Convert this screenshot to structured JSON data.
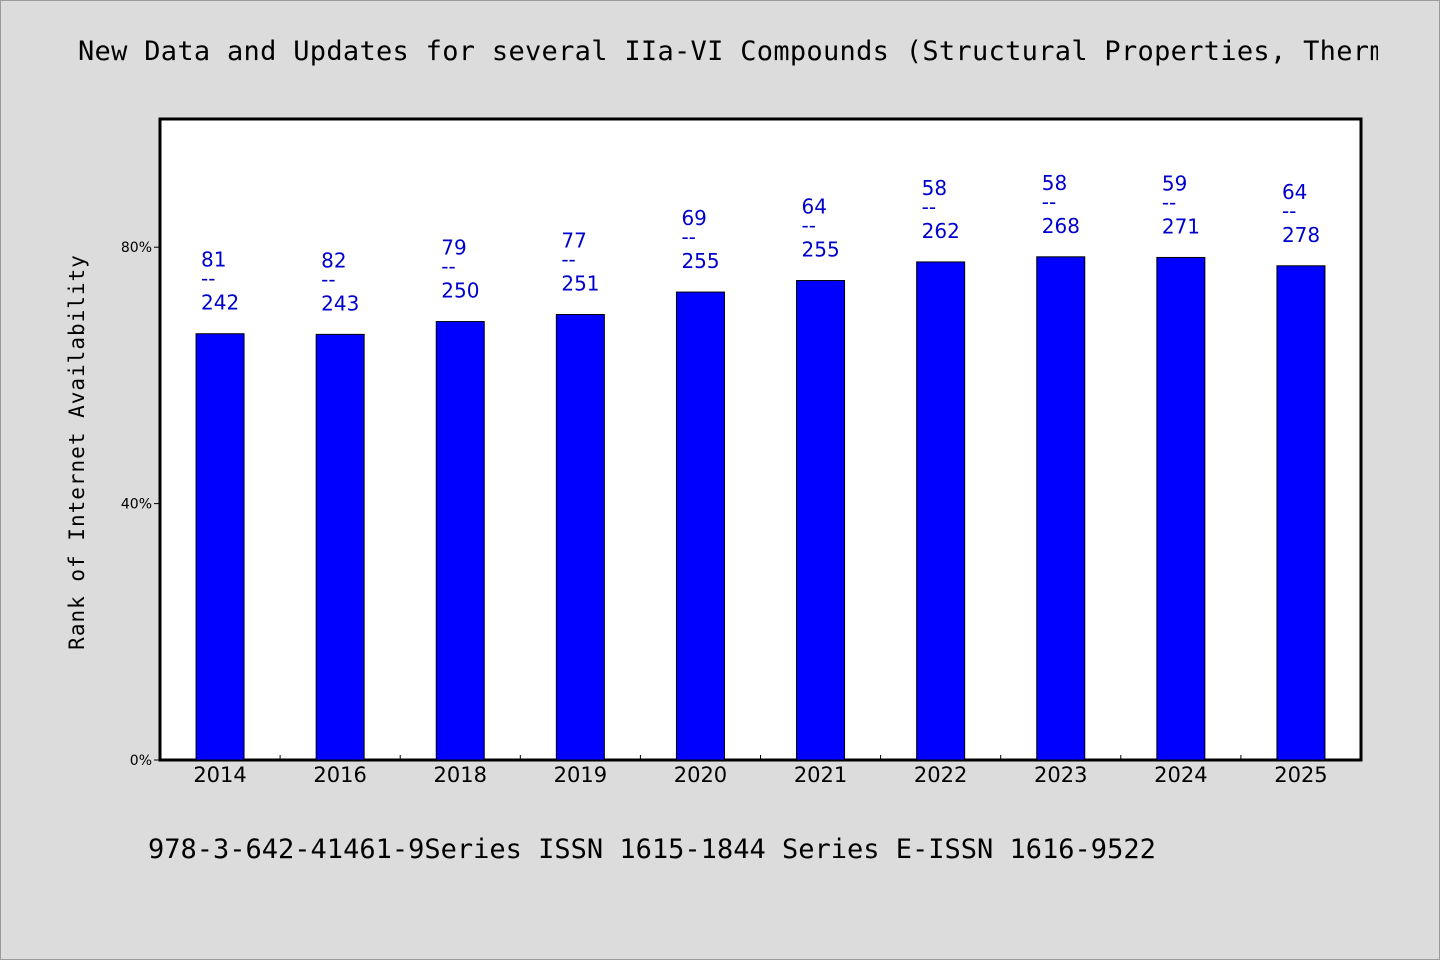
{
  "header": {
    "title": "New Data and Updates for several IIa-VI Compounds (Structural Properties, Therma"
  },
  "footer": {
    "text": "978-3-642-41461-9Series ISSN 1615-1844 Series E-ISSN 1616-9522"
  },
  "chart_data": {
    "type": "bar",
    "title": "New Data and Updates for several IIa-VI Compounds (Structural Properties, Therma",
    "xlabel": "",
    "ylabel": "Rank of Internet Availability",
    "ylim": [
      0,
      100
    ],
    "yticks": [
      "0%",
      "40%",
      "80%"
    ],
    "ytick_values": [
      0,
      40,
      80
    ],
    "categories": [
      "2014",
      "2016",
      "2018",
      "2019",
      "2020",
      "2021",
      "2022",
      "2023",
      "2024",
      "2025"
    ],
    "values": [
      66.5,
      66.4,
      68.4,
      69.5,
      73.0,
      74.8,
      77.7,
      78.5,
      78.4,
      77.1
    ],
    "labels_top": [
      "81",
      "82",
      "79",
      "77",
      "69",
      "64",
      "58",
      "58",
      "59",
      "64"
    ],
    "labels_bottom": [
      "242",
      "243",
      "250",
      "251",
      "255",
      "255",
      "262",
      "268",
      "271",
      "278"
    ],
    "label_separator": "--",
    "bar_color": "#0000ff",
    "label_color": "#0000cc",
    "grid": false,
    "legend": "none"
  }
}
